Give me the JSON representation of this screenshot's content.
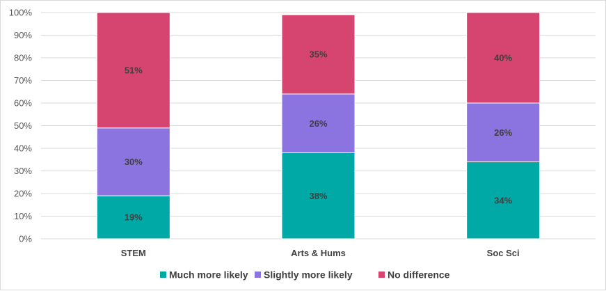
{
  "chart_data": {
    "type": "bar",
    "stacked": true,
    "percent_axis": true,
    "categories": [
      "STEM",
      "Arts & Hums",
      "Soc Sci"
    ],
    "series": [
      {
        "name": "Much more likely",
        "color": "#00a9a5",
        "values": [
          19,
          38,
          34
        ],
        "labels": [
          "19%",
          "38%",
          "34%"
        ]
      },
      {
        "name": "Slightly more likely",
        "color": "#8b73e0",
        "values": [
          30,
          26,
          26
        ],
        "labels": [
          "30%",
          "26%",
          "26%"
        ]
      },
      {
        "name": "No difference",
        "color": "#d64570",
        "values": [
          51,
          35,
          40
        ],
        "labels": [
          "51%",
          "35%",
          "40%"
        ]
      }
    ],
    "ylim": [
      0,
      100
    ],
    "yticks": [
      "0%",
      "10%",
      "20%",
      "30%",
      "40%",
      "50%",
      "60%",
      "70%",
      "80%",
      "90%",
      "100%"
    ],
    "grid": true,
    "legend_position": "bottom",
    "title": "",
    "xlabel": "",
    "ylabel": ""
  }
}
